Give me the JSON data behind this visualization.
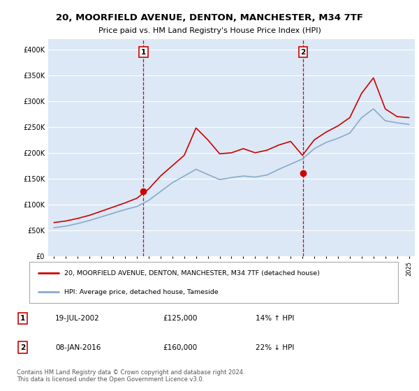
{
  "title": "20, MOORFIELD AVENUE, DENTON, MANCHESTER, M34 7TF",
  "subtitle": "Price paid vs. HM Land Registry's House Price Index (HPI)",
  "ylabel_ticks": [
    "£0",
    "£50K",
    "£100K",
    "£150K",
    "£200K",
    "£250K",
    "£300K",
    "£350K",
    "£400K"
  ],
  "ytick_vals": [
    0,
    50000,
    100000,
    150000,
    200000,
    250000,
    300000,
    350000,
    400000
  ],
  "ylim": [
    0,
    420000
  ],
  "legend_line1": "20, MOORFIELD AVENUE, DENTON, MANCHESTER, M34 7TF (detached house)",
  "legend_line2": "HPI: Average price, detached house, Tameside",
  "marker1_date": "19-JUL-2002",
  "marker1_price": 125000,
  "marker1_hpi": "14% ↑ HPI",
  "marker2_date": "08-JAN-2016",
  "marker2_price": 160000,
  "marker2_hpi": "22% ↓ HPI",
  "footer": "Contains HM Land Registry data © Crown copyright and database right 2024.\nThis data is licensed under the Open Government Licence v3.0.",
  "bg_color": "#dce8f5",
  "grid_color": "#ffffff",
  "red_line_color": "#cc0000",
  "blue_line_color": "#88aacc",
  "hpi_years": [
    1995,
    1996,
    1997,
    1998,
    1999,
    2000,
    2001,
    2002,
    2003,
    2004,
    2005,
    2006,
    2007,
    2008,
    2009,
    2010,
    2011,
    2012,
    2013,
    2014,
    2015,
    2016,
    2017,
    2018,
    2019,
    2020,
    2021,
    2022,
    2023,
    2024,
    2025
  ],
  "hpi_values": [
    55000,
    58000,
    63000,
    69000,
    76000,
    83000,
    90000,
    96000,
    108000,
    125000,
    142000,
    155000,
    168000,
    158000,
    148000,
    152000,
    155000,
    153000,
    157000,
    168000,
    178000,
    188000,
    208000,
    220000,
    228000,
    238000,
    268000,
    285000,
    262000,
    258000,
    255000
  ],
  "red_years": [
    1995,
    1996,
    1997,
    1998,
    1999,
    2000,
    2001,
    2002,
    2003,
    2004,
    2005,
    2006,
    2007,
    2008,
    2009,
    2010,
    2011,
    2012,
    2013,
    2014,
    2015,
    2016,
    2017,
    2018,
    2019,
    2020,
    2021,
    2022,
    2023,
    2024,
    2025
  ],
  "red_values": [
    65000,
    68000,
    73000,
    79000,
    87000,
    95000,
    103000,
    112000,
    130000,
    155000,
    175000,
    195000,
    248000,
    225000,
    198000,
    200000,
    208000,
    200000,
    205000,
    215000,
    222000,
    195000,
    225000,
    240000,
    252000,
    268000,
    315000,
    345000,
    285000,
    270000,
    268000
  ],
  "marker1_x": 2002.55,
  "marker1_y": 125000,
  "marker2_x": 2016.05,
  "marker2_y": 160000,
  "xlim_min": 1994.5,
  "xlim_max": 2025.5
}
